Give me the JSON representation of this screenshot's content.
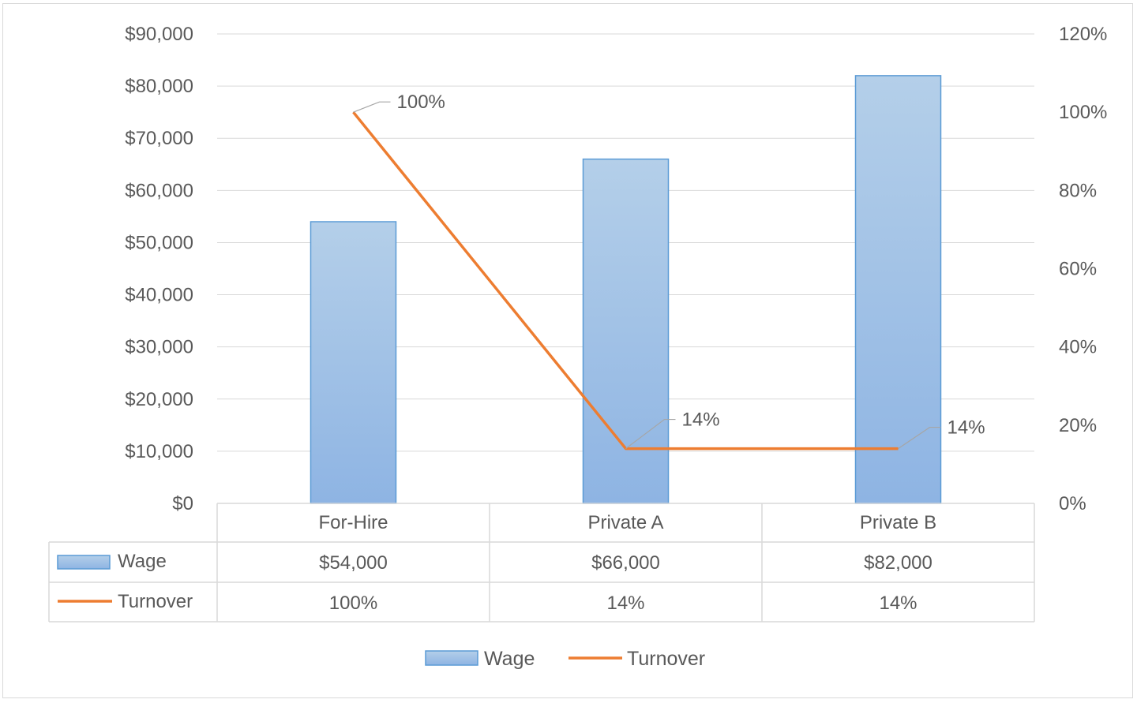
{
  "chart_data": {
    "type": "bar",
    "categories": [
      "For-Hire",
      "Private A",
      "Private B"
    ],
    "series": [
      {
        "name": "Wage",
        "type": "bar",
        "axis": "left",
        "values": [
          54000,
          66000,
          82000
        ],
        "value_labels": [
          "$54,000",
          "$66,000",
          "$82,000"
        ]
      },
      {
        "name": "Turnover",
        "type": "line",
        "axis": "right",
        "values": [
          100,
          14,
          14
        ],
        "value_labels": [
          "100%",
          "14%",
          "14%"
        ]
      }
    ],
    "y_left": {
      "min": 0,
      "max": 90000,
      "ticks": [
        "$0",
        "$10,000",
        "$20,000",
        "$30,000",
        "$40,000",
        "$50,000",
        "$60,000",
        "$70,000",
        "$80,000",
        "$90,000"
      ]
    },
    "y_right": {
      "min": 0,
      "max": 120,
      "ticks": [
        "0%",
        "20%",
        "40%",
        "60%",
        "80%",
        "100%",
        "120%"
      ]
    },
    "data_labels": [
      "100%",
      "14%",
      "14%"
    ],
    "grid": true,
    "data_table": true,
    "legend": {
      "position": "bottom",
      "entries": [
        "Wage",
        "Turnover"
      ]
    },
    "colors": {
      "bar": "#9dc3e6",
      "bar_top": "#b4cfe9",
      "bar_bottom": "#8eb4e3",
      "bar_border": "#5b9bd5",
      "line": "#ed7d31",
      "grid": "#d9d9d9",
      "text": "#595959",
      "leader": "#a6a6a6"
    }
  }
}
